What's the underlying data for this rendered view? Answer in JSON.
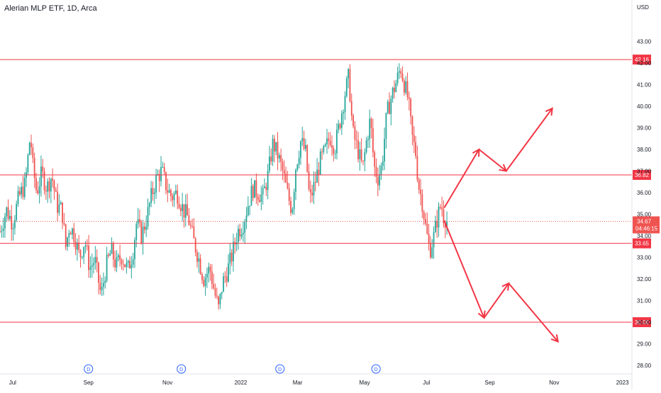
{
  "header": {
    "symbol_title": "Alerian MLP ETF, 1D, Arca"
  },
  "colors": {
    "up": "#26a69a",
    "down": "#ef5350",
    "line": "#f23645",
    "price_label": "#f23645",
    "axis_text": "#131722",
    "grid": "#f0f3fa"
  },
  "chart_data": {
    "type": "candlestick",
    "title": "Alerian MLP ETF, 1D, Arca",
    "currency": "USD",
    "ylim": [
      27.7,
      43.6
    ],
    "y_ticks": [
      28.0,
      29.0,
      30.0,
      31.0,
      32.0,
      33.0,
      34.0,
      35.0,
      36.0,
      37.0,
      38.0,
      39.0,
      40.0,
      41.0,
      42.0,
      43.0
    ],
    "x_ticks": [
      {
        "label": "Jul",
        "t": 0.02
      },
      {
        "label": "Sep",
        "t": 0.14
      },
      {
        "label": "Nov",
        "t": 0.265
      },
      {
        "label": "2022",
        "t": 0.381
      },
      {
        "label": "Mar",
        "t": 0.471
      },
      {
        "label": "May",
        "t": 0.577
      },
      {
        "label": "Jul",
        "t": 0.675
      },
      {
        "label": "Sep",
        "t": 0.775
      },
      {
        "label": "Nov",
        "t": 0.877
      },
      {
        "label": "2023",
        "t": 0.985
      }
    ],
    "dividend_markers": [
      {
        "label": "D",
        "t": 0.14
      },
      {
        "label": "D",
        "t": 0.287
      },
      {
        "label": "D",
        "t": 0.443
      },
      {
        "label": "D",
        "t": 0.595
      }
    ],
    "horizontal_levels": [
      {
        "value": 42.16,
        "label": "42.16"
      },
      {
        "value": 36.82,
        "label": "36.82"
      },
      {
        "value": 33.65,
        "label": "33.65"
      },
      {
        "value": 30.0,
        "label": "30.00"
      }
    ],
    "last_price": {
      "value": 34.67,
      "label": "34.67",
      "countdown": "04:46:15"
    },
    "price_path": [
      [
        0.0,
        34.2
      ],
      [
        0.01,
        35.2
      ],
      [
        0.02,
        34.6
      ],
      [
        0.03,
        35.8
      ],
      [
        0.04,
        36.4
      ],
      [
        0.048,
        38.7
      ],
      [
        0.052,
        37.2
      ],
      [
        0.058,
        36.0
      ],
      [
        0.066,
        36.9
      ],
      [
        0.074,
        36.2
      ],
      [
        0.082,
        36.8
      ],
      [
        0.09,
        35.4
      ],
      [
        0.098,
        35.2
      ],
      [
        0.104,
        33.5
      ],
      [
        0.11,
        34.5
      ],
      [
        0.118,
        34.0
      ],
      [
        0.126,
        33.0
      ],
      [
        0.134,
        33.8
      ],
      [
        0.142,
        32.5
      ],
      [
        0.15,
        32.9
      ],
      [
        0.16,
        31.2
      ],
      [
        0.168,
        32.6
      ],
      [
        0.176,
        33.3
      ],
      [
        0.184,
        32.6
      ],
      [
        0.192,
        33.1
      ],
      [
        0.202,
        32.4
      ],
      [
        0.21,
        33.2
      ],
      [
        0.216,
        34.6
      ],
      [
        0.224,
        34.0
      ],
      [
        0.232,
        34.8
      ],
      [
        0.24,
        35.9
      ],
      [
        0.248,
        36.7
      ],
      [
        0.256,
        37.0
      ],
      [
        0.264,
        36.2
      ],
      [
        0.272,
        35.8
      ],
      [
        0.28,
        36.0
      ],
      [
        0.29,
        35.2
      ],
      [
        0.298,
        34.8
      ],
      [
        0.306,
        33.8
      ],
      [
        0.314,
        33.0
      ],
      [
        0.322,
        32.0
      ],
      [
        0.332,
        32.5
      ],
      [
        0.34,
        31.3
      ],
      [
        0.346,
        30.6
      ],
      [
        0.352,
        31.8
      ],
      [
        0.36,
        32.4
      ],
      [
        0.368,
        33.2
      ],
      [
        0.376,
        34.2
      ],
      [
        0.384,
        34.5
      ],
      [
        0.392,
        35.4
      ],
      [
        0.4,
        36.2
      ],
      [
        0.408,
        36.0
      ],
      [
        0.416,
        35.8
      ],
      [
        0.424,
        36.8
      ],
      [
        0.432,
        38.3
      ],
      [
        0.44,
        37.7
      ],
      [
        0.448,
        36.9
      ],
      [
        0.456,
        35.8
      ],
      [
        0.462,
        35.2
      ],
      [
        0.468,
        37.2
      ],
      [
        0.476,
        38.4
      ],
      [
        0.484,
        37.8
      ],
      [
        0.49,
        35.6
      ],
      [
        0.498,
        36.4
      ],
      [
        0.506,
        37.4
      ],
      [
        0.514,
        37.9
      ],
      [
        0.522,
        38.6
      ],
      [
        0.53,
        38.1
      ],
      [
        0.538,
        39.3
      ],
      [
        0.546,
        40.6
      ],
      [
        0.552,
        41.4
      ],
      [
        0.558,
        38.8
      ],
      [
        0.566,
        38.0
      ],
      [
        0.574,
        37.1
      ],
      [
        0.58,
        38.4
      ],
      [
        0.586,
        39.4
      ],
      [
        0.592,
        37.2
      ],
      [
        0.598,
        36.7
      ],
      [
        0.604,
        37.2
      ],
      [
        0.612,
        39.6
      ],
      [
        0.62,
        40.5
      ],
      [
        0.628,
        41.2
      ],
      [
        0.634,
        41.8
      ],
      [
        0.64,
        41.0
      ],
      [
        0.646,
        40.3
      ],
      [
        0.652,
        38.6
      ],
      [
        0.658,
        37.8
      ],
      [
        0.662,
        36.4
      ],
      [
        0.668,
        35.6
      ],
      [
        0.674,
        34.3
      ],
      [
        0.68,
        33.3
      ],
      [
        0.686,
        33.9
      ],
      [
        0.692,
        34.8
      ],
      [
        0.698,
        35.5
      ],
      [
        0.702,
        34.9
      ],
      [
        0.708,
        34.67
      ]
    ],
    "projection_paths": [
      [
        [
          0.703,
          35.3
        ],
        [
          0.758,
          38.0
        ],
        [
          0.801,
          37.0
        ],
        [
          0.874,
          39.9
        ]
      ],
      [
        [
          0.703,
          34.7
        ],
        [
          0.766,
          30.2
        ],
        [
          0.805,
          31.8
        ],
        [
          0.883,
          29.1
        ]
      ]
    ]
  }
}
